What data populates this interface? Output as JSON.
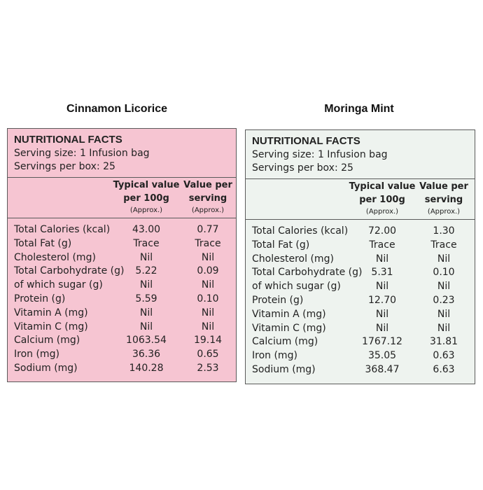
{
  "panels": [
    {
      "title": "Cinnamon Licorice",
      "heading": "NUTRITIONAL FACTS",
      "serving_size": "Serving size: 1 Infusion bag",
      "servings_per_box": "Servings per box: 25",
      "columns": [
        {
          "line1": "Typical value",
          "line2": "per 100g",
          "note": "(Approx.)"
        },
        {
          "line1": "Value per",
          "line2": "serving",
          "note": "(Approx.)"
        }
      ],
      "rows": [
        [
          "Total Calories (kcal)",
          "43.00",
          "0.77"
        ],
        [
          "Total Fat (g)",
          "Trace",
          "Trace"
        ],
        [
          "Cholesterol (mg)",
          "Nil",
          "Nil"
        ],
        [
          "Total Carbohydrate (g)",
          "5.22",
          "0.09"
        ],
        [
          "of which sugar (g)",
          "Nil",
          "Nil"
        ],
        [
          "Protein (g)",
          "5.59",
          "0.10"
        ],
        [
          "Vitamin A (mg)",
          "Nil",
          "Nil"
        ],
        [
          "Vitamin C (mg)",
          "Nil",
          "Nil"
        ],
        [
          "Calcium (mg)",
          "1063.54",
          "19.14"
        ],
        [
          "Iron (mg)",
          "36.36",
          "0.65"
        ],
        [
          "Sodium (mg)",
          "140.28",
          "2.53"
        ]
      ]
    },
    {
      "title": "Moringa Mint",
      "heading": "NUTRITIONAL FACTS",
      "serving_size": "Serving size: 1 Infusion bag",
      "servings_per_box": "Servings per box: 25",
      "columns": [
        {
          "line1": "Typical value",
          "line2": "per 100g",
          "note": "(Approx.)"
        },
        {
          "line1": "Value per",
          "line2": "serving",
          "note": "(Approx.)"
        }
      ],
      "rows": [
        [
          "Total Calories (kcal)",
          "72.00",
          "1.30"
        ],
        [
          "Total Fat (g)",
          "Trace",
          "Trace"
        ],
        [
          "Cholesterol (mg)",
          "Nil",
          "Nil"
        ],
        [
          "Total Carbohydrate (g)",
          "5.31",
          "0.10"
        ],
        [
          "of which sugar (g)",
          "Nil",
          "Nil"
        ],
        [
          "Protein (g)",
          "12.70",
          "0.23"
        ],
        [
          "Vitamin A (mg)",
          "Nil",
          "Nil"
        ],
        [
          "Vitamin C (mg)",
          "Nil",
          "Nil"
        ],
        [
          "Calcium (mg)",
          "1767.12",
          "31.81"
        ],
        [
          "Iron (mg)",
          "35.05",
          "0.63"
        ],
        [
          "Sodium (mg)",
          "368.47",
          "6.63"
        ]
      ]
    }
  ]
}
